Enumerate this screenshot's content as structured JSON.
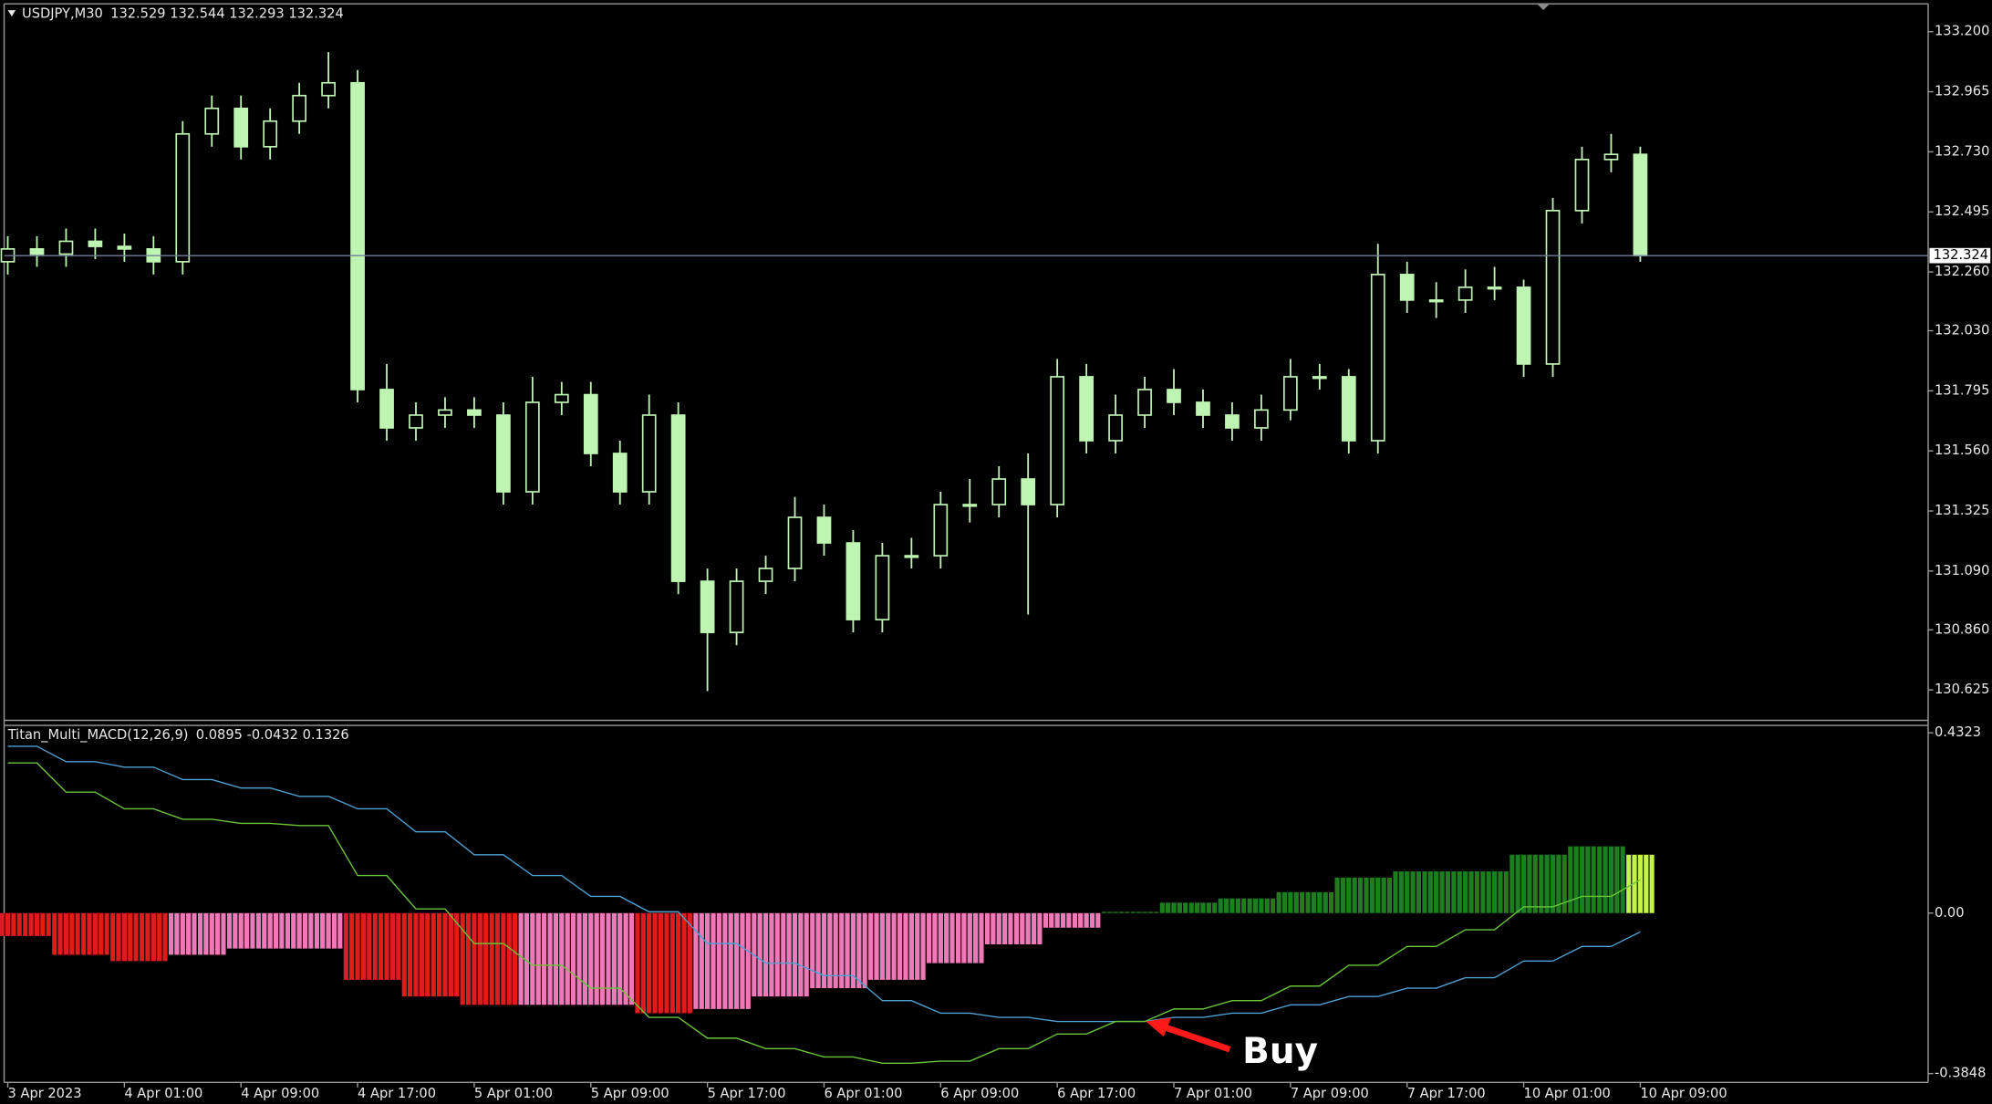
{
  "chart_data": [
    {
      "type": "candlestick",
      "title": "USDJPY,M30",
      "subtitle": "132.529 132.544 132.293 132.324",
      "color": "#bff5b3",
      "last_price": 132.324,
      "xlim": [
        -0.5,
        263.5
      ],
      "ylim": [
        130.506,
        133.309
      ],
      "yticks": [
        {
          "value": 133.2,
          "label": "133.200"
        },
        {
          "value": 132.965,
          "label": "132.965"
        },
        {
          "value": 132.73,
          "label": "132.730"
        },
        {
          "value": 132.495,
          "label": "132.495"
        },
        {
          "value": 132.26,
          "label": "132.260"
        },
        {
          "value": 132.03,
          "label": "132.030"
        },
        {
          "value": 131.795,
          "label": "131.795"
        },
        {
          "value": 131.56,
          "label": "131.560"
        },
        {
          "value": 131.325,
          "label": "131.325"
        },
        {
          "value": 131.09,
          "label": "131.090"
        },
        {
          "value": 130.86,
          "label": "130.860"
        },
        {
          "value": 130.625,
          "label": "130.625"
        }
      ],
      "x": [
        0,
        4,
        8,
        12,
        16,
        20,
        24,
        28,
        32,
        36,
        40,
        44,
        48,
        52,
        56,
        60,
        64,
        68,
        72,
        76,
        80,
        84,
        88,
        92,
        96,
        100,
        104,
        108,
        112,
        116,
        120,
        124,
        128,
        132,
        136,
        140,
        144,
        148,
        152,
        156,
        160,
        164,
        168,
        172,
        176,
        180,
        184,
        188,
        192,
        196,
        200,
        204,
        208,
        212,
        216,
        220,
        224
      ],
      "open": [
        132.3,
        132.35,
        132.33,
        132.38,
        132.36,
        132.35,
        132.3,
        132.8,
        132.9,
        132.75,
        132.85,
        132.95,
        133.0,
        131.8,
        131.65,
        131.7,
        131.72,
        131.7,
        131.4,
        131.75,
        131.78,
        131.55,
        131.4,
        131.7,
        131.05,
        130.85,
        131.05,
        131.1,
        131.3,
        131.2,
        130.9,
        131.15,
        131.15,
        131.35,
        131.35,
        131.45,
        131.35,
        131.85,
        131.6,
        131.7,
        131.8,
        131.75,
        131.7,
        131.65,
        131.72,
        131.85,
        131.85,
        131.6,
        132.25,
        132.15,
        132.15,
        132.2,
        132.2,
        131.9,
        132.5,
        132.7,
        132.72
      ],
      "high": [
        132.4,
        132.4,
        132.43,
        132.43,
        132.41,
        132.4,
        132.85,
        132.95,
        132.95,
        132.9,
        133.0,
        133.12,
        133.05,
        131.9,
        131.75,
        131.77,
        131.77,
        131.75,
        131.85,
        131.83,
        131.83,
        131.6,
        131.78,
        131.75,
        131.1,
        131.1,
        131.15,
        131.38,
        131.35,
        131.25,
        131.2,
        131.22,
        131.4,
        131.45,
        131.5,
        131.55,
        131.92,
        131.9,
        131.78,
        131.85,
        131.88,
        131.8,
        131.75,
        131.78,
        131.92,
        131.9,
        131.88,
        132.37,
        132.3,
        132.22,
        132.27,
        132.28,
        132.23,
        132.55,
        132.75,
        132.8,
        132.75
      ],
      "low": [
        132.25,
        132.28,
        132.28,
        132.31,
        132.3,
        132.25,
        132.25,
        132.75,
        132.7,
        132.7,
        132.8,
        132.9,
        131.75,
        131.6,
        131.6,
        131.65,
        131.65,
        131.35,
        131.35,
        131.7,
        131.5,
        131.35,
        131.35,
        131.0,
        130.62,
        130.8,
        131.0,
        131.05,
        131.15,
        130.85,
        130.85,
        131.1,
        131.1,
        131.28,
        131.3,
        130.92,
        131.3,
        131.55,
        131.55,
        131.65,
        131.7,
        131.65,
        131.6,
        131.6,
        131.68,
        131.8,
        131.55,
        131.55,
        132.1,
        132.08,
        132.1,
        132.15,
        131.85,
        131.85,
        132.45,
        132.65,
        132.3
      ],
      "close": [
        132.35,
        132.33,
        132.38,
        132.36,
        132.35,
        132.3,
        132.8,
        132.9,
        132.75,
        132.85,
        132.95,
        133.0,
        131.8,
        131.65,
        131.7,
        131.72,
        131.7,
        131.4,
        131.75,
        131.78,
        131.55,
        131.4,
        131.7,
        131.05,
        130.85,
        131.05,
        131.1,
        131.3,
        131.2,
        130.9,
        131.15,
        131.15,
        131.35,
        131.35,
        131.45,
        131.35,
        131.85,
        131.6,
        131.7,
        131.8,
        131.75,
        131.7,
        131.65,
        131.72,
        131.85,
        131.85,
        131.6,
        132.25,
        132.15,
        132.15,
        132.2,
        132.2,
        131.9,
        132.5,
        132.7,
        132.72,
        132.324
      ]
    },
    {
      "type": "macd",
      "title": "Titan_Multi_MACD(12,26,9)",
      "subtitle": "0.0895 -0.0432 0.1326",
      "annotation": "Buy",
      "xlim": [
        -0.5,
        263.5
      ],
      "ylim": [
        -0.406,
        0.45
      ],
      "yticks": [
        0.4323,
        {
          "value": 0,
          "label": "0.00"
        },
        -0.3848
      ],
      "xticks": [
        {
          "value": 0,
          "label": "3 Apr 2023"
        },
        {
          "value": 16,
          "label": "4 Apr 01:00"
        },
        {
          "value": 32,
          "label": "4 Apr 09:00"
        },
        {
          "value": 48,
          "label": "4 Apr 17:00"
        },
        {
          "value": 64,
          "label": "5 Apr 01:00"
        },
        {
          "value": 80,
          "label": "5 Apr 09:00"
        },
        {
          "value": 96,
          "label": "5 Apr 17:00"
        },
        {
          "value": 112,
          "label": "6 Apr 01:00"
        },
        {
          "value": 128,
          "label": "6 Apr 09:00"
        },
        {
          "value": 144,
          "label": "6 Apr 17:00"
        },
        {
          "value": 160,
          "label": "7 Apr 01:00"
        },
        {
          "value": 176,
          "label": "7 Apr 09:00"
        },
        {
          "value": 192,
          "label": "7 Apr 17:00"
        },
        {
          "value": 208,
          "label": "10 Apr 01:00"
        },
        {
          "value": 224,
          "label": "10 Apr 09:00"
        }
      ],
      "x": [
        0,
        4,
        8,
        12,
        16,
        20,
        24,
        28,
        32,
        36,
        40,
        44,
        48,
        52,
        56,
        60,
        64,
        68,
        72,
        76,
        80,
        84,
        88,
        92,
        96,
        100,
        104,
        108,
        112,
        116,
        120,
        124,
        128,
        132,
        136,
        140,
        144,
        148,
        152,
        156,
        160,
        164,
        168,
        172,
        176,
        180,
        184,
        188,
        192,
        196,
        200,
        204,
        208,
        212,
        216,
        220,
        224
      ],
      "histogram": {
        "values": [
          -0.055,
          -0.055,
          -0.1,
          -0.1,
          -0.115,
          -0.115,
          -0.1,
          -0.1,
          -0.085,
          -0.085,
          -0.085,
          -0.085,
          -0.16,
          -0.16,
          -0.2,
          -0.2,
          -0.22,
          -0.22,
          -0.22,
          -0.22,
          -0.22,
          -0.22,
          -0.24,
          -0.24,
          -0.23,
          -0.23,
          -0.2,
          -0.2,
          -0.18,
          -0.18,
          -0.16,
          -0.16,
          -0.12,
          -0.12,
          -0.075,
          -0.075,
          -0.035,
          -0.035,
          0.003,
          0.003,
          0.025,
          0.025,
          0.035,
          0.035,
          0.05,
          0.05,
          0.085,
          0.085,
          0.1,
          0.1,
          0.1,
          0.1,
          0.14,
          0.14,
          0.16,
          0.16,
          0.14
        ],
        "colors": [
          "#e01b1b",
          "#e01b1b",
          "#e01b1b",
          "#e01b1b",
          "#e01b1b",
          "#e01b1b",
          "#ee79b8",
          "#ee79b8",
          "#ee79b8",
          "#ee79b8",
          "#ee79b8",
          "#ee79b8",
          "#e01b1b",
          "#e01b1b",
          "#e01b1b",
          "#e01b1b",
          "#e01b1b",
          "#e01b1b",
          "#ee79b8",
          "#ee79b8",
          "#ee79b8",
          "#ee79b8",
          "#e01b1b",
          "#e01b1b",
          "#ee79b8",
          "#ee79b8",
          "#ee79b8",
          "#ee79b8",
          "#ee79b8",
          "#ee79b8",
          "#ee79b8",
          "#ee79b8",
          "#ee79b8",
          "#ee79b8",
          "#ee79b8",
          "#ee79b8",
          "#ee79b8",
          "#ee79b8",
          "#1e7d1e",
          "#1e7d1e",
          "#1e7d1e",
          "#1e7d1e",
          "#1e7d1e",
          "#1e7d1e",
          "#1e7d1e",
          "#1e7d1e",
          "#1e7d1e",
          "#1e7d1e",
          "#1e7d1e",
          "#1e7d1e",
          "#1e7d1e",
          "#1e7d1e",
          "#1e7d1e",
          "#1e7d1e",
          "#1e7d1e",
          "#1e7d1e",
          "#c3f24a"
        ]
      },
      "lines": [
        {
          "color": "#4f9fd0",
          "values": [
            0.4,
            0.4,
            0.363,
            0.363,
            0.35,
            0.35,
            0.32,
            0.32,
            0.3,
            0.3,
            0.28,
            0.28,
            0.25,
            0.25,
            0.195,
            0.195,
            0.14,
            0.14,
            0.09,
            0.09,
            0.04,
            0.04,
            0.003,
            0.003,
            -0.073,
            -0.073,
            -0.12,
            -0.12,
            -0.15,
            -0.15,
            -0.21,
            -0.21,
            -0.24,
            -0.24,
            -0.25,
            -0.25,
            -0.26,
            -0.26,
            -0.26,
            -0.26,
            -0.25,
            -0.25,
            -0.24,
            -0.24,
            -0.22,
            -0.22,
            -0.2,
            -0.2,
            -0.18,
            -0.18,
            -0.155,
            -0.155,
            -0.115,
            -0.115,
            -0.08,
            -0.08,
            -0.045
          ]
        },
        {
          "color": "#6ac43a",
          "values": [
            0.36,
            0.36,
            0.29,
            0.29,
            0.25,
            0.25,
            0.225,
            0.225,
            0.215,
            0.215,
            0.21,
            0.21,
            0.09,
            0.09,
            0.01,
            0.01,
            -0.073,
            -0.073,
            -0.125,
            -0.125,
            -0.18,
            -0.18,
            -0.25,
            -0.25,
            -0.3,
            -0.3,
            -0.325,
            -0.325,
            -0.345,
            -0.345,
            -0.36,
            -0.36,
            -0.355,
            -0.355,
            -0.325,
            -0.325,
            -0.29,
            -0.29,
            -0.26,
            -0.26,
            -0.23,
            -0.23,
            -0.21,
            -0.21,
            -0.175,
            -0.175,
            -0.125,
            -0.125,
            -0.08,
            -0.08,
            -0.04,
            -0.04,
            0.015,
            0.015,
            0.04,
            0.04,
            0.08
          ]
        }
      ]
    }
  ]
}
